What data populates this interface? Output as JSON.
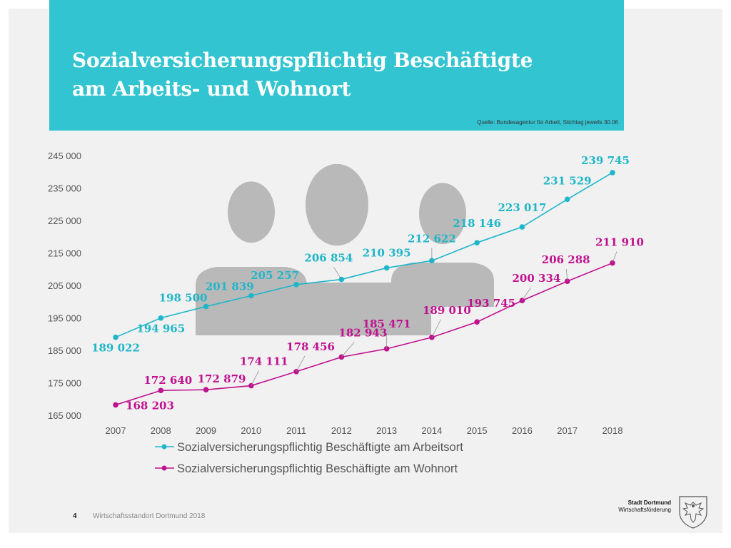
{
  "title": {
    "line1": "Sozialversicherungspflichtig Beschäftigte",
    "line2": "am Arbeits- und Wohnort"
  },
  "source": "Quelle: Bundesagentur für Arbeit, Stichtag jeweils 30.06",
  "footer": {
    "page_number": "4",
    "text": "Wirtschaftsstandort Dortmund 2018"
  },
  "logo": {
    "line1": "Stadt Dortmund",
    "line2": "Wirtschaftsförderung"
  },
  "colors": {
    "accent": "#33c4d1",
    "arbeitsort": "#1fb6c9",
    "wohnort": "#c0128f",
    "people_icon": "#b9b9b9"
  },
  "background_icon": "people-group-icon",
  "chart_data": {
    "type": "line",
    "x": [
      "2007",
      "2008",
      "2009",
      "2010",
      "2011",
      "2012",
      "2013",
      "2014",
      "2015",
      "2016",
      "2017",
      "2018"
    ],
    "yticks": [
      "245 000",
      "235 000",
      "225 000",
      "215 000",
      "205 000",
      "195 000",
      "185 000",
      "175 000",
      "165 000"
    ],
    "ylim": [
      165000,
      245000
    ],
    "grid": false,
    "legend_position": "bottom",
    "series": [
      {
        "name": "Sozialversicherungspflichtig Beschäftigte am Arbeitsort",
        "color": "#1fb6c9",
        "values": [
          189022,
          194965,
          198500,
          201839,
          205257,
          206854,
          210395,
          212622,
          218146,
          223017,
          231529,
          239745
        ],
        "labels": [
          "189 022",
          "194 965",
          "198 500",
          "201 839",
          "205 257",
          "206 854",
          "210 395",
          "212 622",
          "218 146",
          "223 017",
          "231 529",
          "239 745"
        ]
      },
      {
        "name": "Sozialversicherungspflichtig Beschäftigte am Wohnort",
        "color": "#c0128f",
        "values": [
          168203,
          172640,
          172879,
          174111,
          178456,
          182943,
          185471,
          189010,
          193745,
          200334,
          206288,
          211910
        ],
        "labels": [
          "168 203",
          "172 640",
          "172 879",
          "174 111",
          "178 456",
          "182 943",
          "185 471",
          "189 010",
          "193 745",
          "200 334",
          "206 288",
          "211 910"
        ]
      }
    ]
  }
}
